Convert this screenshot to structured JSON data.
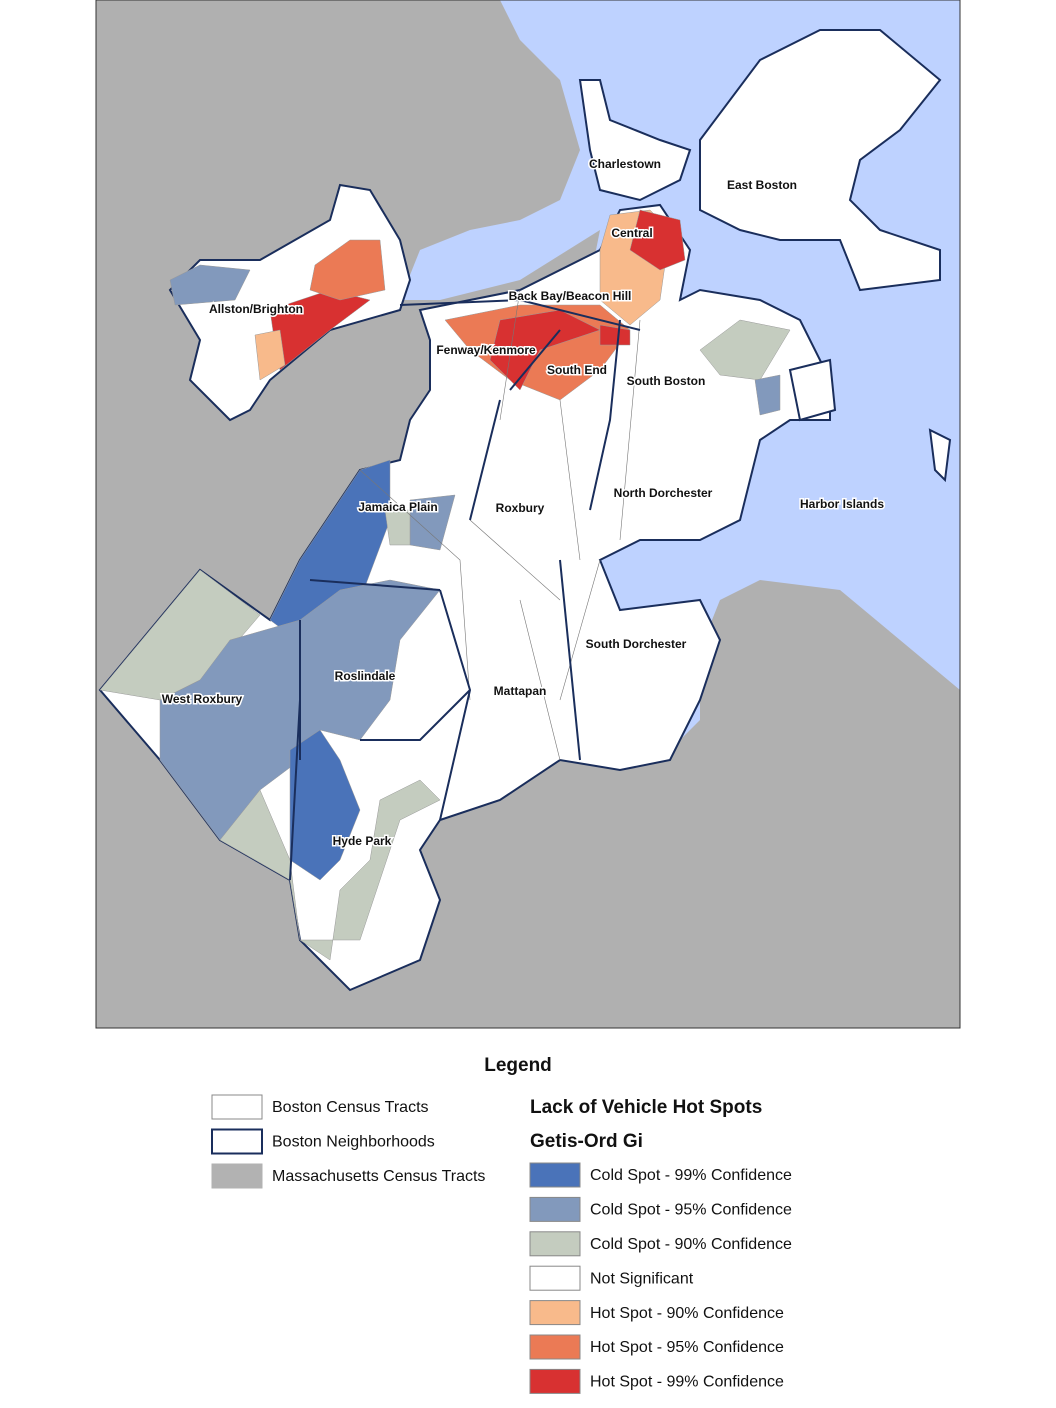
{
  "map": {
    "labels": [
      "Charlestown",
      "East Boston",
      "Central",
      "Back Bay/Beacon Hill",
      "Allston/Brighton",
      "Fenway/Kenmore",
      "South End",
      "South Boston",
      "North Dorchester",
      "Harbor Islands",
      "Jamaica Plain",
      "Roxbury",
      "South Dorchester",
      "Roslindale",
      "West Roxbury",
      "Mattapan",
      "Hyde Park"
    ]
  },
  "legend": {
    "title": "Legend",
    "base_items": [
      {
        "label": "Boston Census Tracts",
        "color": "#ffffff",
        "outline": "#888888"
      },
      {
        "label": "Boston Neighborhoods",
        "color": "#ffffff",
        "outline": "#1a2e5c"
      },
      {
        "label": "Massachusetts Census Tracts",
        "color": "#b2b2b2",
        "outline": "#b2b2b2"
      }
    ],
    "hotspot_title": "Lack of Vehicle Hot Spots",
    "method": "Getis-Ord Gi",
    "classes": [
      {
        "label": "Cold Spot - 99% Confidence",
        "color": "#4a73b9"
      },
      {
        "label": "Cold Spot - 95% Confidence",
        "color": "#8299bc"
      },
      {
        "label": "Cold Spot - 90% Confidence",
        "color": "#c4ccbf"
      },
      {
        "label": "Not Significant",
        "color": "#ffffff"
      },
      {
        "label": "Hot Spot - 90% Confidence",
        "color": "#f8ba8b"
      },
      {
        "label": "Hot Spot - 95% Confidence",
        "color": "#eb7a55"
      },
      {
        "label": "Hot Spot - 99% Confidence",
        "color": "#d83131"
      }
    ]
  }
}
